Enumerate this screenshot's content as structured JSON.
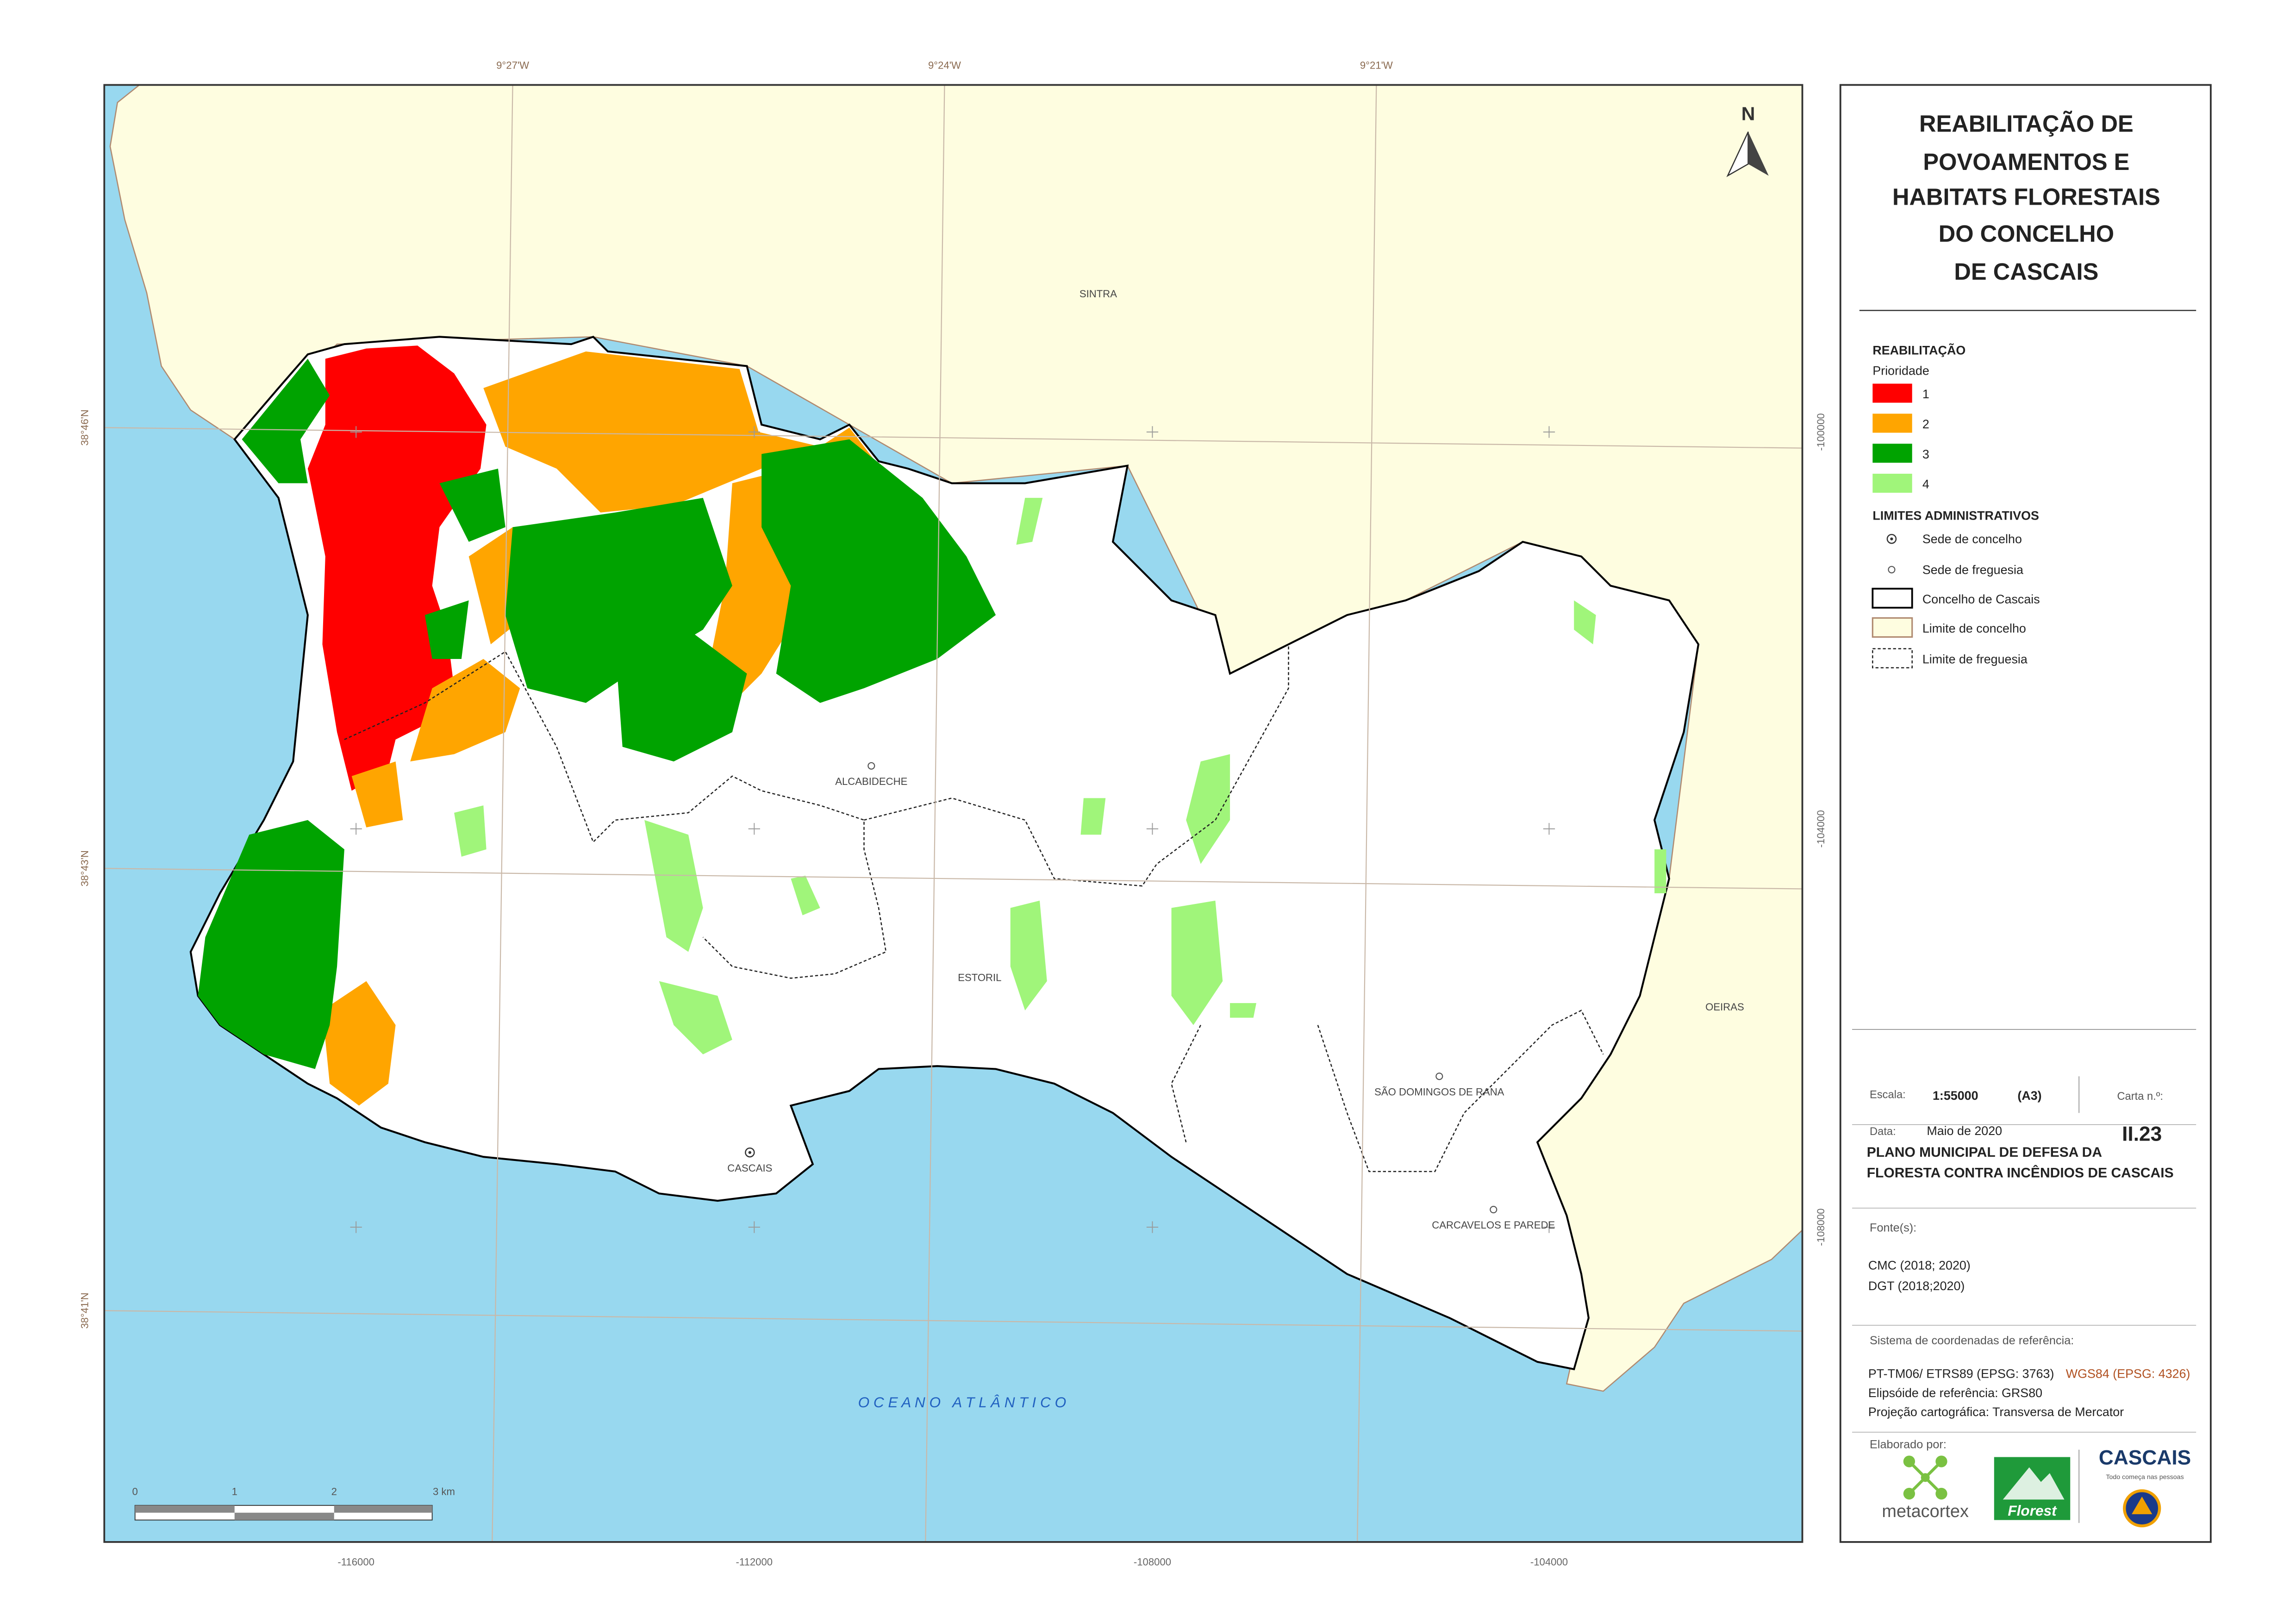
{
  "title": [
    "REABILITAÇÃO DE",
    "POVOAMENTOS E",
    "HABITATS FLORESTAIS",
    "DO CONCELHO",
    "DE CASCAIS"
  ],
  "north": "N",
  "grid": {
    "top": [
      "9°27'W",
      "9°24'W",
      "9°21'W"
    ],
    "left": [
      "38°46'N",
      "38°43'N",
      "38°41'N"
    ],
    "bottom": [
      "-116000",
      "-112000",
      "-108000",
      "-104000"
    ],
    "right": [
      "-100000",
      "-104000",
      "-108000"
    ]
  },
  "places": [
    "SINTRA",
    "OEIRAS",
    "ALCABIDECHE",
    "ESTORIL",
    "SÃO DOMINGOS DE RANA",
    "CASCAIS",
    "CARCAVELOS E PAREDE",
    "O C E A N O   A T L Â N T I C O"
  ],
  "scale_bar": [
    "0",
    "1",
    "2",
    "3 km"
  ],
  "legend": {
    "heading": "REABILITAÇÃO",
    "subheading": "Prioridade",
    "classes": [
      {
        "label": "1",
        "color": "#ff0000"
      },
      {
        "label": "2",
        "color": "#ffa500"
      },
      {
        "label": "3",
        "color": "#00a300"
      },
      {
        "label": "4",
        "color": "#a0f57a"
      }
    ],
    "limits_heading": "LIMITES ADMINISTRATIVOS",
    "limits": [
      "Sede de concelho",
      "Sede de freguesia",
      "Concelho de Cascais",
      "Limite de concelho",
      "Limite de freguesia"
    ]
  },
  "sheet": {
    "scale_label": "Escala:",
    "scale": "1:55000",
    "paper": "(A3)",
    "sheet_label": "Carta n.º:",
    "date_label": "Data:",
    "date": "Maio de 2020",
    "sheet_number": "II.23",
    "plan": [
      "PLANO MUNICIPAL DE DEFESA DA",
      "FLORESTA CONTRA INCÊNDIOS DE CASCAIS"
    ],
    "sources_label": "Fonte(s):",
    "sources": [
      "CMC (2018; 2020)",
      "DGT (2018;2020)"
    ],
    "crs_label": "Sistema de coordenadas de referência:",
    "crs": "PT-TM06/ ETRS89 (EPSG: 3763)",
    "crs2": "WGS84 (EPSG: 4326)",
    "ellipsoid": "Elipsóide de referência: GRS80",
    "projection": "Projeção cartográfica: Transversa de Mercator",
    "made_by": "Elaborado por:",
    "logos": [
      "metacortex",
      "Florest",
      "CASCAIS",
      "Todo começa nas pessoas"
    ]
  }
}
